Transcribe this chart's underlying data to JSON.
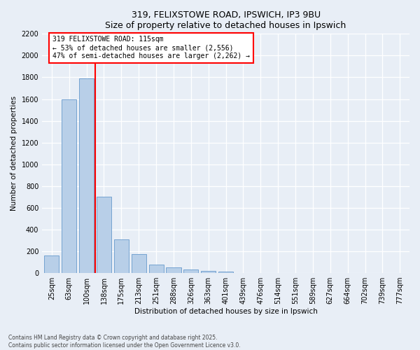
{
  "title1": "319, FELIXSTOWE ROAD, IPSWICH, IP3 9BU",
  "title2": "Size of property relative to detached houses in Ipswich",
  "xlabel": "Distribution of detached houses by size in Ipswich",
  "ylabel": "Number of detached properties",
  "categories": [
    "25sqm",
    "63sqm",
    "100sqm",
    "138sqm",
    "175sqm",
    "213sqm",
    "251sqm",
    "288sqm",
    "326sqm",
    "363sqm",
    "401sqm",
    "439sqm",
    "476sqm",
    "514sqm",
    "551sqm",
    "589sqm",
    "627sqm",
    "664sqm",
    "702sqm",
    "739sqm",
    "777sqm"
  ],
  "values": [
    160,
    1600,
    1790,
    700,
    310,
    175,
    80,
    50,
    30,
    20,
    15,
    0,
    0,
    0,
    0,
    0,
    0,
    0,
    0,
    0,
    0
  ],
  "bar_color": "#b8cfe8",
  "bar_edgecolor": "#6699cc",
  "vline_x": 2.5,
  "vline_color": "red",
  "annotation_text": "319 FELIXSTOWE ROAD: 115sqm\n← 53% of detached houses are smaller (2,556)\n47% of semi-detached houses are larger (2,262) →",
  "annotation_box_facecolor": "white",
  "annotation_box_edgecolor": "red",
  "ylim_max": 2200,
  "yticks": [
    0,
    200,
    400,
    600,
    800,
    1000,
    1200,
    1400,
    1600,
    1800,
    2000,
    2200
  ],
  "footer1": "Contains HM Land Registry data © Crown copyright and database right 2025.",
  "footer2": "Contains public sector information licensed under the Open Government Licence v3.0.",
  "bg_color": "#e8eef6",
  "grid_color": "white",
  "title_fontsize": 9,
  "axis_label_fontsize": 7.5,
  "tick_fontsize": 7,
  "annotation_fontsize": 7
}
